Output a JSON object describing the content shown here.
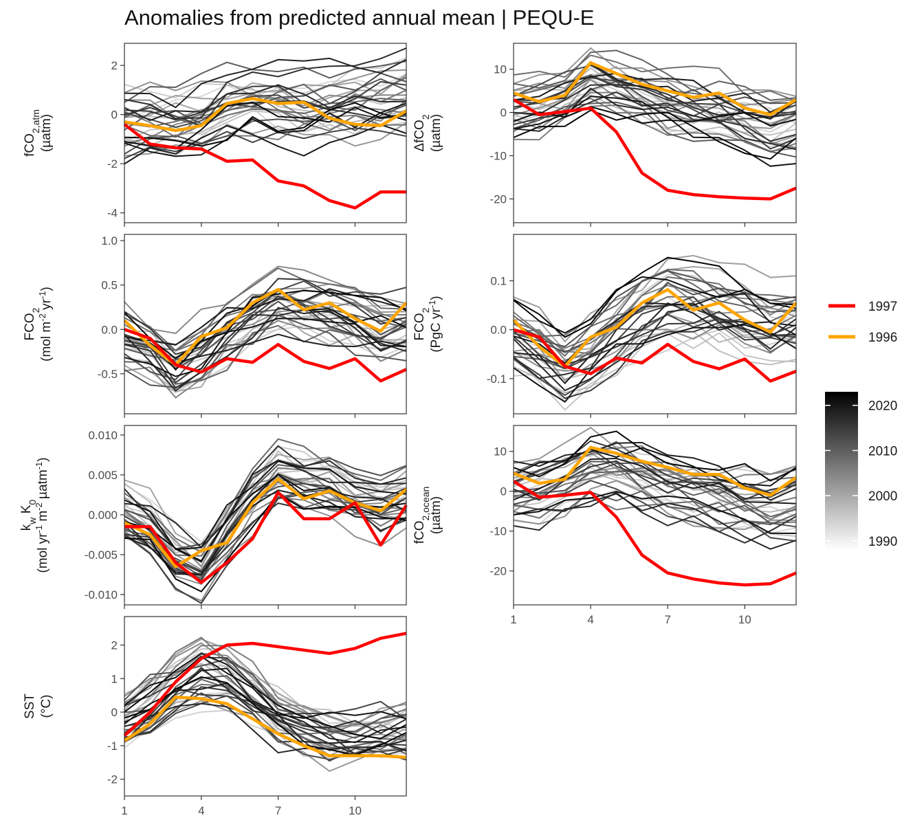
{
  "title": "Anomalies from predicted annual mean | PEQU-E",
  "colors": {
    "highlight_1997": "#ff0000",
    "highlight_1996": "#ffa500",
    "background_years_low": "#e6e6e6",
    "background_years_high": "#000000"
  },
  "legend": {
    "series": [
      {
        "name": "1997",
        "color": "#ff0000"
      },
      {
        "name": "1996",
        "color": "#ffa500"
      }
    ],
    "colorbar": {
      "ticks": [
        "2020",
        "2010",
        "2000",
        "1990"
      ],
      "min": 1988,
      "max": 2023
    }
  },
  "chart_data": [
    {
      "type": "line",
      "panel": "fco2_atm",
      "ylabel": {
        "main": "fCO",
        "sub": "2,atm",
        "unit": "(µatm)"
      },
      "xlim": [
        1,
        12
      ],
      "ylim": [
        -4.4,
        2.9
      ],
      "yticks": [
        2,
        0,
        -2,
        -4
      ],
      "ytick_labels": [
        "2",
        "0",
        "-2",
        "-4"
      ],
      "xticks": [
        1,
        4,
        7,
        10
      ],
      "xtick_labels": [],
      "series": [
        {
          "name": "1997",
          "values": [
            -0.4,
            -1.2,
            -1.35,
            -1.4,
            -1.9,
            -1.85,
            -2.7,
            -2.9,
            -3.5,
            -3.8,
            -3.15,
            -3.15
          ]
        },
        {
          "name": "1996",
          "values": [
            -0.3,
            -0.45,
            -0.65,
            -0.45,
            0.45,
            0.65,
            0.45,
            0.5,
            -0.15,
            -0.4,
            -0.45,
            0.15
          ]
        }
      ],
      "spread": {
        "center": [
          -0.3,
          -0.3,
          -0.4,
          -0.2,
          0.3,
          0.4,
          0.3,
          0.2,
          0.3,
          0.4,
          0.6,
          0.8
        ],
        "amplitude": 1.3
      }
    },
    {
      "type": "line",
      "panel": "delta_fco2",
      "ylabel": {
        "main": "ΔfCO",
        "sub": "2",
        "unit": "(µatm)"
      },
      "xlim": [
        1,
        12
      ],
      "ylim": [
        -25.5,
        16.0
      ],
      "yticks": [
        10,
        0,
        -10,
        -20
      ],
      "ytick_labels": [
        "10",
        "0",
        "-10",
        "-20"
      ],
      "xticks": [
        1,
        4,
        7,
        10
      ],
      "xtick_labels": [],
      "series": [
        {
          "name": "1997",
          "values": [
            3,
            -0.5,
            0.2,
            1,
            -4.5,
            -14,
            -18,
            -19,
            -19.5,
            -19.8,
            -20,
            -17.5
          ]
        },
        {
          "name": "1996",
          "values": [
            4.5,
            2.5,
            4,
            11.5,
            9,
            6.5,
            5,
            3.5,
            4.5,
            1,
            -0.5,
            3
          ]
        }
      ],
      "spread": {
        "center": [
          0,
          0,
          2,
          6,
          5,
          3,
          1,
          0,
          -1,
          -2,
          -4,
          -3
        ],
        "amplitude": 6.5
      }
    },
    {
      "type": "line",
      "panel": "fco2_flux_area",
      "ylabel": {
        "main": "FCO",
        "sub": "2",
        "unit_parts": [
          "(mol m",
          "-2",
          " yr",
          "-1",
          ")"
        ]
      },
      "xlim": [
        1,
        12
      ],
      "ylim": [
        -0.95,
        1.07
      ],
      "yticks": [
        1.0,
        0.5,
        0.0,
        -0.5
      ],
      "ytick_labels": [
        "1.0",
        "0.5",
        "0.0",
        "-0.5"
      ],
      "xticks": [
        1,
        4,
        7,
        10
      ],
      "xtick_labels": [],
      "series": [
        {
          "name": "1997",
          "values": [
            0,
            -0.1,
            -0.4,
            -0.48,
            -0.33,
            -0.37,
            -0.17,
            -0.36,
            -0.44,
            -0.33,
            -0.58,
            -0.45
          ]
        },
        {
          "name": "1996",
          "values": [
            0.1,
            -0.18,
            -0.4,
            -0.08,
            0.02,
            0.3,
            0.45,
            0.22,
            0.3,
            0.12,
            -0.02,
            0.3
          ]
        }
      ],
      "spread": {
        "center": [
          -0.05,
          -0.2,
          -0.4,
          -0.25,
          0.0,
          0.2,
          0.35,
          0.3,
          0.25,
          0.15,
          0.05,
          0.1
        ],
        "amplitude": 0.35
      }
    },
    {
      "type": "line",
      "panel": "fco2_flux_total",
      "ylabel": {
        "main": "FCO",
        "sub": "2",
        "unit_parts": [
          "(PgC yr",
          "-1",
          ")"
        ]
      },
      "xlim": [
        1,
        12
      ],
      "ylim": [
        -0.172,
        0.195
      ],
      "yticks": [
        0.1,
        0.0,
        -0.1
      ],
      "ytick_labels": [
        "0.1",
        "0.0",
        "-0.1"
      ],
      "xticks": [
        1,
        4,
        7,
        10
      ],
      "xtick_labels": [],
      "series": [
        {
          "name": "1997",
          "values": [
            0,
            -0.015,
            -0.075,
            -0.09,
            -0.058,
            -0.068,
            -0.03,
            -0.065,
            -0.08,
            -0.06,
            -0.105,
            -0.085
          ]
        },
        {
          "name": "1996",
          "values": [
            0.02,
            -0.035,
            -0.075,
            -0.015,
            0.005,
            0.055,
            0.082,
            0.04,
            0.055,
            0.02,
            -0.005,
            0.055
          ]
        }
      ],
      "spread": {
        "center": [
          -0.01,
          -0.035,
          -0.07,
          -0.045,
          0.0,
          0.035,
          0.065,
          0.055,
          0.045,
          0.03,
          0.01,
          0.02
        ],
        "amplitude": 0.065
      }
    },
    {
      "type": "line",
      "panel": "kw_k0",
      "ylabel": {
        "line1": [
          "k",
          "w",
          " K",
          "0"
        ],
        "line2": [
          "(mol yr",
          "-1",
          " m",
          "-2",
          " µatm",
          "-1",
          ")"
        ]
      },
      "xlim": [
        1,
        12
      ],
      "ylim": [
        -0.0113,
        0.0112
      ],
      "yticks": [
        0.01,
        0.005,
        0.0,
        -0.005,
        -0.01
      ],
      "ytick_labels": [
        "0.010",
        "0.005",
        "0.000",
        "-0.005",
        "-0.010"
      ],
      "xticks": [
        1,
        4,
        7,
        10
      ],
      "xtick_labels": [],
      "series": [
        {
          "name": "1997",
          "values": [
            -0.0015,
            -0.0015,
            -0.006,
            -0.0085,
            -0.006,
            -0.003,
            0.0028,
            -0.0005,
            -0.0005,
            0.0015,
            -0.0038,
            0.0012
          ]
        },
        {
          "name": "1996",
          "values": [
            -0.001,
            -0.0025,
            -0.0065,
            -0.0045,
            -0.0035,
            0.0015,
            0.0045,
            0.002,
            0.003,
            0.0015,
            0.0005,
            0.0032
          ]
        }
      ],
      "spread": {
        "center": [
          0.0,
          -0.002,
          -0.0055,
          -0.0065,
          -0.002,
          0.002,
          0.005,
          0.004,
          0.0035,
          0.002,
          0.001,
          0.002
        ],
        "amplitude": 0.0035
      }
    },
    {
      "type": "line",
      "panel": "fco2_ocean",
      "ylabel": {
        "main": "fCO",
        "sub": "2,ocean",
        "unit": "(µatm)"
      },
      "xlim": [
        1,
        12
      ],
      "ylim": [
        -28.5,
        16.5
      ],
      "yticks": [
        10,
        0,
        -10,
        -20
      ],
      "ytick_labels": [
        "10",
        "0",
        "-10",
        "-20"
      ],
      "xticks": [
        1,
        4,
        7,
        10
      ],
      "xtick_labels": [
        "1",
        "4",
        "7",
        "10"
      ],
      "series": [
        {
          "name": "1997",
          "values": [
            2.5,
            -1.5,
            -1,
            -0.3,
            -6.5,
            -16,
            -20.5,
            -22,
            -23,
            -23.5,
            -23.2,
            -20.5
          ]
        },
        {
          "name": "1996",
          "values": [
            4.5,
            2,
            3,
            11,
            9.5,
            7.5,
            6,
            4.2,
            4.2,
            0.8,
            -1,
            3.5
          ]
        }
      ],
      "spread": {
        "center": [
          -0.5,
          -0.5,
          1.5,
          5.5,
          5,
          3,
          1.5,
          0,
          -1,
          -2.5,
          -4,
          -3
        ],
        "amplitude": 7
      }
    },
    {
      "type": "line",
      "panel": "sst",
      "ylabel": {
        "main": "SST",
        "unit": "(°C)"
      },
      "xlim": [
        1,
        12
      ],
      "ylim": [
        -2.5,
        2.85
      ],
      "yticks": [
        2,
        1,
        0,
        -1,
        -2
      ],
      "ytick_labels": [
        "2",
        "1",
        "0",
        "-1",
        "-2"
      ],
      "xticks": [
        1,
        4,
        7,
        10
      ],
      "xtick_labels": [
        "1",
        "4",
        "7",
        "10"
      ],
      "series": [
        {
          "name": "1997",
          "values": [
            -0.7,
            0.0,
            0.9,
            1.6,
            2.0,
            2.05,
            1.95,
            1.85,
            1.75,
            1.9,
            2.2,
            2.35
          ]
        },
        {
          "name": "1996",
          "values": [
            -0.85,
            -0.35,
            0.45,
            0.4,
            0.25,
            -0.2,
            -0.65,
            -1.0,
            -1.3,
            -1.3,
            -1.3,
            -1.35
          ]
        }
      ],
      "spread": {
        "center": [
          -0.3,
          0.2,
          0.8,
          1.1,
          0.9,
          0.4,
          -0.2,
          -0.6,
          -0.8,
          -0.8,
          -0.7,
          -0.6
        ],
        "amplitude": 0.8
      }
    }
  ]
}
